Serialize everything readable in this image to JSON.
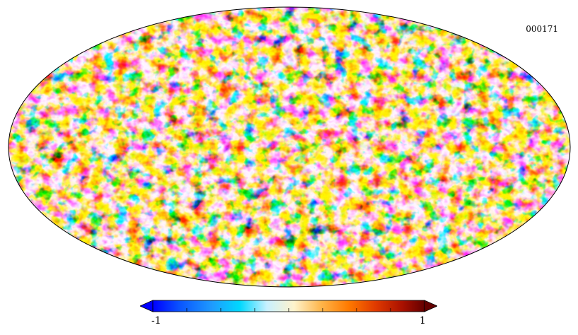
{
  "map": {
    "identifier": "000171",
    "projection": "mollweide",
    "description_colormap": "planck"
  },
  "colorbar": {
    "min_label": "-1",
    "max_label": "1",
    "min_value": -1,
    "max_value": 1,
    "tick_count": 9,
    "colors": [
      "#0000ff",
      "#0a55ff",
      "#1f9cff",
      "#00d8ff",
      "#c8f0ff",
      "#fff3cc",
      "#ffb54a",
      "#ff7a00",
      "#e03a00",
      "#a81000",
      "#640000"
    ]
  }
}
